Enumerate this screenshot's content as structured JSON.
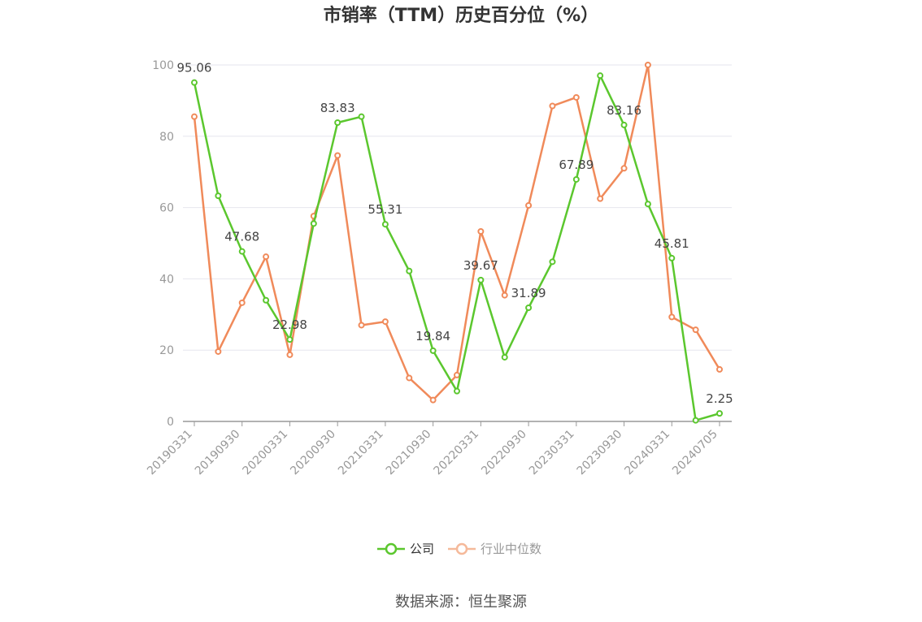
{
  "chart_data": {
    "type": "line",
    "title": "市销率（TTM）历史百分位（%）",
    "source": "数据来源：恒生聚源",
    "ylim": [
      0,
      100
    ],
    "y_ticks": [
      0,
      20,
      40,
      60,
      80,
      100
    ],
    "x_tick_labels": [
      "20190331",
      "20190930",
      "20200331",
      "20200930",
      "20210331",
      "20210930",
      "20220331",
      "20220930",
      "20230331",
      "20230930",
      "20240331",
      "20240705"
    ],
    "x_tick_indices": [
      0,
      2,
      4,
      6,
      8,
      10,
      12,
      14,
      16,
      18,
      20,
      22
    ],
    "legend": {
      "position": "bottom-center"
    },
    "series": [
      {
        "name": "公司",
        "color": "#5bc72e",
        "values": [
          95.06,
          63.3,
          47.68,
          34.0,
          22.98,
          55.5,
          83.83,
          85.5,
          55.31,
          42.2,
          19.84,
          8.5,
          39.67,
          18.0,
          31.89,
          44.8,
          67.89,
          97.0,
          83.16,
          61.0,
          45.81,
          0.3,
          2.25
        ],
        "labels": {
          "0": "95.06",
          "2": "47.68",
          "4": "22.98",
          "6": "83.83",
          "8": "55.31",
          "10": "19.84",
          "12": "39.67",
          "14": "31.89",
          "16": "67.89",
          "18": "83.16",
          "20": "45.81",
          "22": "2.25"
        }
      },
      {
        "name": "行业中位数",
        "color": "#f08a5a",
        "values": [
          85.5,
          19.6,
          33.3,
          46.2,
          18.7,
          57.6,
          74.6,
          27.0,
          28.0,
          12.2,
          6.0,
          13.0,
          53.3,
          35.4,
          60.6,
          88.5,
          90.9,
          62.5,
          71.0,
          100.0,
          29.3,
          25.7,
          14.6
        ]
      }
    ]
  }
}
